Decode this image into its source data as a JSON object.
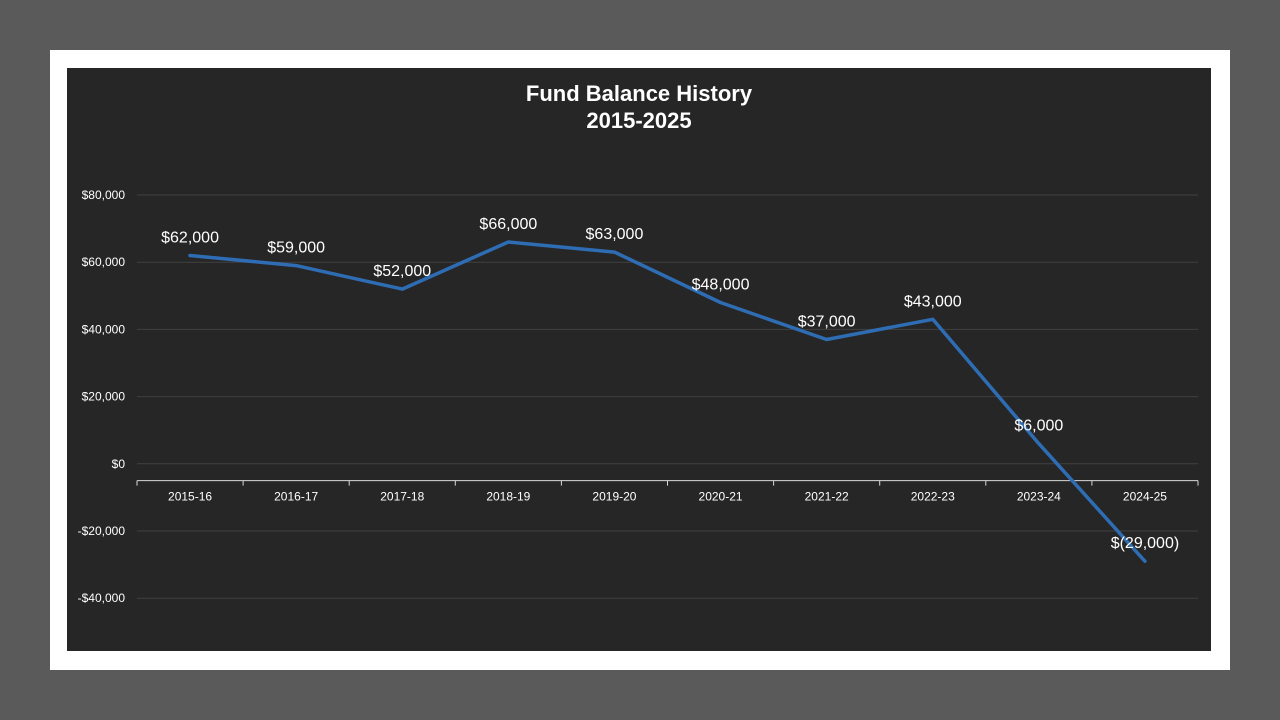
{
  "colors": {
    "page_background": "#5a5a5a",
    "frame": "#ffffff",
    "plot_background": "#262626",
    "line": "#2e6db4",
    "text": "#ffffff",
    "grid": "#404040"
  },
  "chart_data": {
    "type": "line",
    "title": "Fund Balance History",
    "subtitle": "2015-2025",
    "categories": [
      "2015-16",
      "2016-17",
      "2017-18",
      "2018-19",
      "2019-20",
      "2020-21",
      "2021-22",
      "2022-23",
      "2023-24",
      "2024-25"
    ],
    "series": [
      {
        "values": [
          62000,
          59000,
          52000,
          66000,
          63000,
          48000,
          37000,
          43000,
          6000,
          -29000
        ],
        "data_labels": [
          "$62,000",
          "$59,000",
          "$52,000",
          "$66,000",
          "$63,000",
          "$48,000",
          "$37,000",
          "$43,000",
          "$6,000",
          "$(29,000)"
        ]
      }
    ],
    "y_ticks": [
      80000,
      60000,
      40000,
      20000,
      0,
      -20000,
      -40000
    ],
    "y_tick_labels": [
      "$80,000",
      "$60,000",
      "$40,000",
      "$20,000",
      "$0",
      "-$20,000",
      "-$40,000"
    ],
    "ylim": [
      -50000,
      80000
    ],
    "category_axis_crosses_at": -5000,
    "grid": true,
    "legend": "none",
    "xlabel": "",
    "ylabel": ""
  }
}
